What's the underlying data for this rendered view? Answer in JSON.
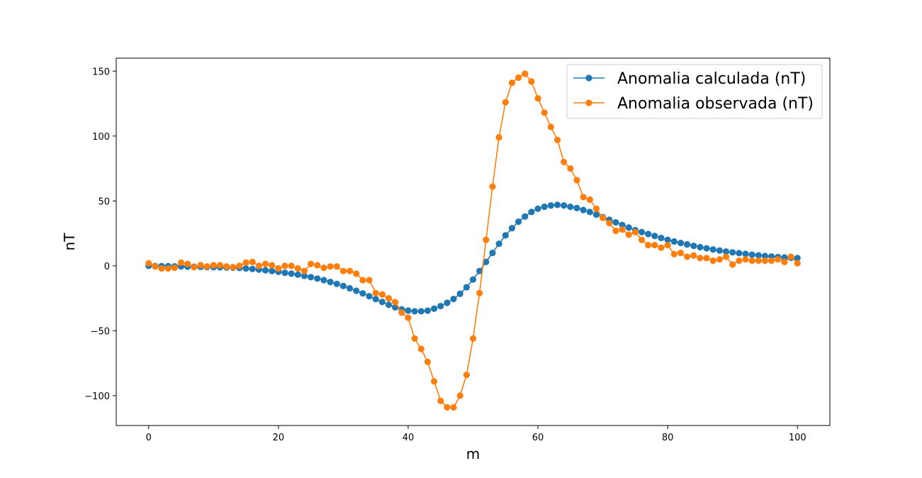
{
  "chart_data": {
    "type": "line",
    "title": "",
    "xlabel": "m",
    "ylabel": "nT",
    "xlim": [
      -5,
      105
    ],
    "ylim": [
      -123,
      160
    ],
    "xticks": [
      0,
      20,
      40,
      60,
      80,
      100
    ],
    "yticks": [
      -100,
      -50,
      0,
      50,
      100,
      150
    ],
    "xtick_labels": [
      "0",
      "20",
      "40",
      "60",
      "80",
      "100"
    ],
    "ytick_labels": [
      "−100",
      "−50",
      "0",
      "50",
      "100",
      "150"
    ],
    "grid": false,
    "legend_placement": "upper right",
    "markers": "circle",
    "series": [
      {
        "name": "Anomalia calculada (nT)",
        "color": "#1f77b4",
        "x": [
          0,
          1,
          2,
          3,
          4,
          5,
          6,
          7,
          8,
          9,
          10,
          11,
          12,
          13,
          14,
          15,
          16,
          17,
          18,
          19,
          20,
          21,
          22,
          23,
          24,
          25,
          26,
          27,
          28,
          29,
          30,
          31,
          32,
          33,
          34,
          35,
          36,
          37,
          38,
          39,
          40,
          41,
          42,
          43,
          44,
          45,
          46,
          47,
          48,
          49,
          50,
          51,
          52,
          53,
          54,
          55,
          56,
          57,
          58,
          59,
          60,
          61,
          62,
          63,
          64,
          65,
          66,
          67,
          68,
          69,
          70,
          71,
          72,
          73,
          74,
          75,
          76,
          77,
          78,
          79,
          80,
          81,
          82,
          83,
          84,
          85,
          86,
          87,
          88,
          89,
          90,
          91,
          92,
          93,
          94,
          95,
          96,
          97,
          98,
          99,
          100
        ],
        "y": [
          0,
          -0.1,
          -0.2,
          -0.3,
          -0.4,
          -0.5,
          -0.6,
          -0.7,
          -0.8,
          -0.9,
          -1.0,
          -1.1,
          -1.2,
          -1.4,
          -1.6,
          -2.0,
          -2.4,
          -2.9,
          -3.4,
          -4.0,
          -4.6,
          -5.3,
          -6.0,
          -6.8,
          -7.7,
          -8.7,
          -9.8,
          -11.0,
          -12.4,
          -13.9,
          -15.5,
          -17.3,
          -19.2,
          -21.2,
          -23.4,
          -25.6,
          -27.8,
          -30.0,
          -32.0,
          -33.5,
          -34.5,
          -35.0,
          -35.0,
          -34.5,
          -33.0,
          -31.0,
          -28.5,
          -25.5,
          -21.5,
          -16.5,
          -10.5,
          -4.0,
          3.0,
          10.0,
          17.0,
          23.5,
          29.0,
          34.0,
          38.0,
          41.5,
          44.0,
          45.5,
          46.5,
          47.0,
          46.5,
          45.5,
          44.5,
          43.0,
          41.5,
          39.5,
          37.5,
          35.5,
          33.5,
          31.5,
          29.5,
          27.5,
          26.0,
          24.5,
          23.0,
          21.5,
          20.0,
          18.8,
          17.6,
          16.5,
          15.4,
          14.4,
          13.5,
          12.6,
          11.8,
          11.0,
          10.4,
          9.8,
          9.2,
          8.6,
          8.1,
          7.6,
          7.2,
          6.8,
          6.5,
          6.2,
          6.0
        ]
      },
      {
        "name": "Anomalia observada (nT)",
        "color": "#ff7f0e",
        "x": [
          0,
          1,
          2,
          3,
          4,
          5,
          6,
          7,
          8,
          9,
          10,
          11,
          12,
          13,
          14,
          15,
          16,
          17,
          18,
          19,
          20,
          21,
          22,
          23,
          24,
          25,
          26,
          27,
          28,
          29,
          30,
          31,
          32,
          33,
          34,
          35,
          36,
          37,
          38,
          39,
          40,
          41,
          42,
          43,
          44,
          45,
          46,
          47,
          48,
          49,
          50,
          51,
          52,
          53,
          54,
          55,
          56,
          57,
          58,
          59,
          60,
          61,
          62,
          63,
          64,
          65,
          66,
          67,
          68,
          69,
          70,
          71,
          72,
          73,
          74,
          75,
          76,
          77,
          78,
          79,
          80,
          81,
          82,
          83,
          84,
          85,
          86,
          87,
          88,
          89,
          90,
          91,
          92,
          93,
          94,
          95,
          96,
          97,
          98,
          99,
          100
        ],
        "y": [
          2,
          -0.5,
          -2,
          -2,
          -1.5,
          2.5,
          1.5,
          -1,
          0.5,
          -0.5,
          0.5,
          0.5,
          -0.5,
          -1,
          0,
          2.5,
          3,
          0,
          1.5,
          0.5,
          -2,
          0,
          0,
          -2,
          -4,
          1.5,
          0.5,
          -1.5,
          -0.5,
          -0.5,
          -4,
          -4,
          -6,
          -11,
          -11,
          -21,
          -22,
          -25,
          -28,
          -36,
          -40,
          -56,
          -64,
          -74,
          -89,
          -104,
          -109,
          -109,
          -100,
          -84,
          -56,
          -21,
          20,
          61,
          99,
          126,
          141,
          145,
          148,
          142,
          129,
          118,
          107,
          97,
          80,
          75,
          66,
          53,
          51,
          44,
          37,
          33,
          27,
          28,
          24,
          26,
          20,
          16,
          16,
          14,
          16,
          9,
          10,
          7,
          8,
          6,
          6,
          4,
          5,
          7,
          1,
          4,
          5,
          4,
          4,
          4,
          4,
          5,
          3,
          7,
          2
        ]
      }
    ]
  }
}
